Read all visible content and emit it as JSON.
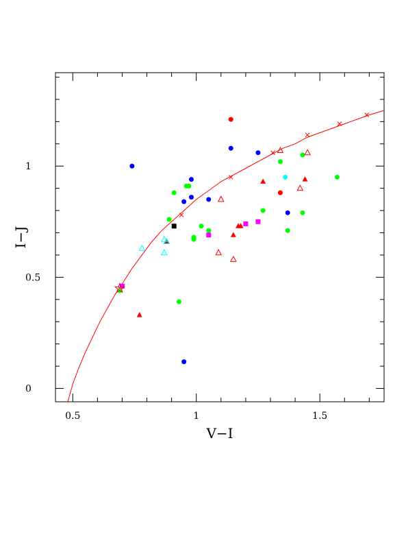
{
  "chart_data": {
    "type": "scatter",
    "title": "",
    "xlabel": "V−I",
    "ylabel": "I−J",
    "xlim": [
      0.43,
      1.76
    ],
    "ylim": [
      -0.06,
      1.42
    ],
    "xticks": [
      {
        "value": 0.5,
        "label": "0.5"
      },
      {
        "value": 1.0,
        "label": "1"
      },
      {
        "value": 1.5,
        "label": "1.5"
      }
    ],
    "yticks": [
      {
        "value": 0.0,
        "label": "0"
      },
      {
        "value": 0.5,
        "label": "0.5"
      },
      {
        "value": 1.0,
        "label": "1"
      }
    ],
    "grid": false,
    "curve": {
      "color": "#ff0000",
      "x": [
        0.48,
        0.5,
        0.52,
        0.55,
        0.58,
        0.61,
        0.64,
        0.67,
        0.7,
        0.74,
        0.78,
        0.82,
        0.86,
        0.9,
        0.95,
        1.0,
        1.05,
        1.1,
        1.15,
        1.2,
        1.25,
        1.3,
        1.35,
        1.4,
        1.45,
        1.5,
        1.55,
        1.6,
        1.65,
        1.7,
        1.76
      ],
      "y": [
        -0.06,
        0.02,
        0.08,
        0.16,
        0.23,
        0.3,
        0.36,
        0.42,
        0.47,
        0.54,
        0.6,
        0.66,
        0.71,
        0.75,
        0.8,
        0.85,
        0.89,
        0.93,
        0.96,
        0.99,
        1.02,
        1.05,
        1.08,
        1.1,
        1.13,
        1.15,
        1.17,
        1.19,
        1.21,
        1.23,
        1.25
      ],
      "markers_x": [
        0.69,
        0.94,
        1.14,
        1.31,
        1.45,
        1.58,
        1.69
      ],
      "markers_y": [
        0.45,
        0.78,
        0.95,
        1.06,
        1.14,
        1.19,
        1.23
      ]
    },
    "series": [
      {
        "marker": "circle",
        "color": "#0000ff",
        "x": [
          0.74,
          0.95,
          0.98,
          0.98,
          1.05,
          1.14,
          1.25,
          1.37,
          0.95
        ],
        "y": [
          1.0,
          0.84,
          0.94,
          0.86,
          0.85,
          1.08,
          1.06,
          0.79,
          0.12
        ]
      },
      {
        "marker": "circle",
        "color": "#00ff00",
        "x": [
          0.69,
          0.89,
          0.91,
          0.96,
          0.97,
          0.99,
          0.99,
          1.02,
          1.05,
          1.27,
          1.34,
          1.37,
          1.43,
          1.43,
          1.57,
          0.93
        ],
        "y": [
          0.44,
          0.76,
          0.88,
          0.91,
          0.91,
          0.68,
          0.67,
          0.73,
          0.71,
          0.8,
          1.02,
          0.71,
          1.05,
          0.79,
          0.95,
          0.39
        ]
      },
      {
        "marker": "circle",
        "color": "#ff0000",
        "x": [
          1.14,
          1.34
        ],
        "y": [
          1.21,
          0.88
        ]
      },
      {
        "marker": "circle",
        "color": "#00ffff",
        "x": [
          1.36
        ],
        "y": [
          0.95
        ]
      },
      {
        "marker": "square",
        "color": "#000000",
        "x": [
          0.91
        ],
        "y": [
          0.73
        ]
      },
      {
        "marker": "square",
        "color": "#ff00ff",
        "x": [
          0.7,
          1.05,
          1.2,
          1.25
        ],
        "y": [
          0.46,
          0.69,
          0.74,
          0.75
        ]
      },
      {
        "marker": "triangle",
        "color": "#ff0000",
        "x": [
          0.77,
          0.88,
          1.15,
          1.18,
          1.27,
          1.44,
          1.17
        ],
        "y": [
          0.33,
          0.66,
          0.69,
          0.73,
          0.93,
          0.94,
          0.73
        ]
      },
      {
        "marker": "triangle-open",
        "color": "#ff0000",
        "x": [
          1.09,
          1.1,
          1.15,
          1.34,
          1.42,
          1.45
        ],
        "y": [
          0.61,
          0.85,
          0.58,
          1.07,
          0.9,
          1.06
        ]
      },
      {
        "marker": "triangle-open",
        "color": "#00ffff",
        "x": [
          0.78,
          0.87,
          0.87,
          0.88
        ],
        "y": [
          0.63,
          0.61,
          0.67,
          0.66
        ]
      },
      {
        "marker": "star-open",
        "color": "#ff0000",
        "x": [
          0.69
        ],
        "y": [
          0.45
        ]
      }
    ]
  }
}
